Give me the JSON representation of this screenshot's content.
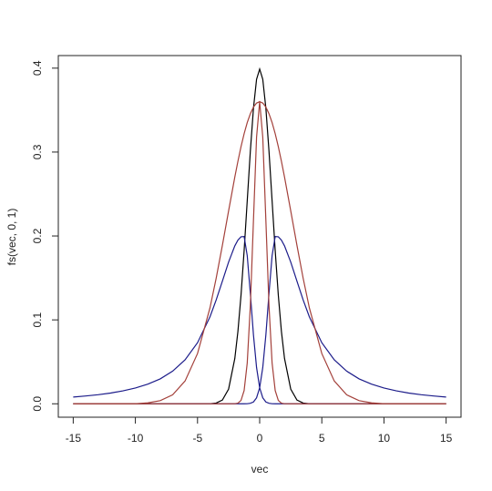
{
  "chart_data": {
    "type": "line",
    "xlabel": "vec",
    "ylabel": "fs(vec, 0, 1)",
    "x": [
      -15,
      -14,
      -13,
      -12,
      -11,
      -10,
      -9,
      -8,
      -7,
      -6,
      -5,
      -4,
      -3.5,
      -3,
      -2.5,
      -2,
      -1.75,
      -1.5,
      -1.25,
      -1,
      -0.75,
      -0.5,
      -0.25,
      0,
      0.25,
      0.5,
      0.75,
      1,
      1.25,
      1.5,
      1.75,
      2,
      2.5,
      3,
      3.5,
      4,
      5,
      6,
      7,
      8,
      9,
      10,
      11,
      12,
      13,
      14,
      15
    ],
    "series": [
      {
        "color": "#000000",
        "values": [
          0,
          0,
          0,
          0,
          0,
          0,
          0,
          0,
          0,
          0,
          0,
          0.0001,
          0.0009,
          0.0044,
          0.0175,
          0.054,
          0.0863,
          0.1295,
          0.1826,
          0.242,
          0.3011,
          0.3521,
          0.3867,
          0.3989,
          0.3867,
          0.3521,
          0.3011,
          0.242,
          0.1826,
          0.1295,
          0.0863,
          0.054,
          0.0175,
          0.0044,
          0.0009,
          0.0001,
          0,
          0,
          0,
          0,
          0,
          0,
          0,
          0,
          0,
          0,
          0
        ]
      },
      {
        "color": "#1c1c8a",
        "values": [
          0.008,
          0.0093,
          0.0108,
          0.0128,
          0.0154,
          0.0188,
          0.0234,
          0.0297,
          0.0389,
          0.0524,
          0.0728,
          0.1036,
          0.1237,
          0.1461,
          0.1689,
          0.1882,
          0.195,
          0.199,
          0.1993,
          0.1765,
          0.1314,
          0.0822,
          0.0433,
          0.0191,
          0.0071,
          0.0022,
          0.0006,
          0.0001,
          0,
          0,
          0,
          0,
          0,
          0,
          0,
          0,
          0,
          0,
          0,
          0,
          0,
          0,
          0,
          0,
          0,
          0,
          0
        ]
      },
      {
        "color": "#1c1c8a",
        "values": [
          0,
          0,
          0,
          0,
          0,
          0,
          0,
          0,
          0,
          0,
          0,
          0,
          0,
          0,
          0,
          0,
          0,
          0,
          0,
          0.0001,
          0.0006,
          0.0022,
          0.0071,
          0.0191,
          0.0433,
          0.0822,
          0.1314,
          0.1765,
          0.1993,
          0.199,
          0.195,
          0.1882,
          0.1689,
          0.1461,
          0.1237,
          0.1036,
          0.0728,
          0.0524,
          0.0389,
          0.0297,
          0.0234,
          0.0188,
          0.0154,
          0.0128,
          0.0108,
          0.0093,
          0.008
        ]
      },
      {
        "color": "#a3403a",
        "values": [
          0,
          0,
          0,
          0,
          0,
          0,
          0.0011,
          0.0037,
          0.0107,
          0.0272,
          0.0599,
          0.1142,
          0.1495,
          0.1888,
          0.2299,
          0.2702,
          0.289,
          0.3064,
          0.3219,
          0.3351,
          0.3457,
          0.3536,
          0.3584,
          0.36,
          0.3177,
          0.2183,
          0.1169,
          0.0487,
          0.0158,
          0.004,
          0.0008,
          0.0001,
          0,
          0,
          0,
          0,
          0,
          0,
          0,
          0,
          0,
          0,
          0,
          0,
          0,
          0,
          0
        ]
      },
      {
        "color": "#a3403a",
        "values": [
          0,
          0,
          0,
          0,
          0,
          0,
          0,
          0,
          0,
          0,
          0,
          0,
          0,
          0,
          0,
          0.0001,
          0.0008,
          0.004,
          0.0158,
          0.0487,
          0.1169,
          0.2183,
          0.3177,
          0.36,
          0.3584,
          0.3536,
          0.3457,
          0.3351,
          0.3219,
          0.3064,
          0.289,
          0.2702,
          0.2299,
          0.1888,
          0.1495,
          0.1142,
          0.0599,
          0.0272,
          0.0107,
          0.0037,
          0.0011,
          0,
          0,
          0,
          0,
          0,
          0
        ]
      }
    ],
    "xlim": [
      -16.2,
      16.2
    ],
    "ylim": [
      -0.016,
      0.415
    ],
    "xticks": [
      -15,
      -10,
      -5,
      0,
      5,
      10,
      15
    ],
    "yticks": [
      {
        "value": 0,
        "label": "0.0"
      },
      0.1,
      0.2,
      0.3,
      {
        "value": 0.4,
        "label": "0.4"
      }
    ]
  }
}
